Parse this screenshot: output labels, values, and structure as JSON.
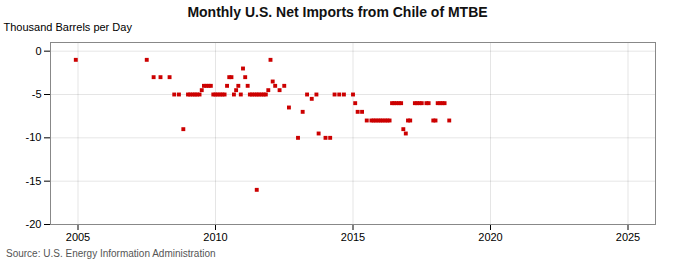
{
  "chart_data": {
    "type": "scatter",
    "title": "Monthly U.S. Net Imports from Chile of MTBE",
    "ylabel": "Thousand Barrels per Day",
    "source": "Source: U.S. Energy Information Administration",
    "x": [
      2004.92,
      2007.5,
      2007.75,
      2008.0,
      2008.33,
      2008.5,
      2008.67,
      2008.83,
      2009.0,
      2009.08,
      2009.17,
      2009.25,
      2009.33,
      2009.42,
      2009.5,
      2009.58,
      2009.67,
      2009.75,
      2009.83,
      2009.92,
      2010.0,
      2010.08,
      2010.17,
      2010.25,
      2010.33,
      2010.42,
      2010.5,
      2010.58,
      2010.67,
      2010.75,
      2010.83,
      2010.92,
      2011.0,
      2011.08,
      2011.17,
      2011.25,
      2011.33,
      2011.42,
      2011.5,
      2011.58,
      2011.67,
      2011.75,
      2011.83,
      2011.92,
      2012.0,
      2012.08,
      2012.17,
      2012.33,
      2012.5,
      2012.67,
      2013.0,
      2013.17,
      2013.33,
      2013.5,
      2013.67,
      2013.75,
      2014.0,
      2014.17,
      2014.33,
      2014.5,
      2014.67,
      2015.0,
      2015.08,
      2015.17,
      2015.33,
      2015.5,
      2015.67,
      2015.75,
      2015.83,
      2015.92,
      2016.0,
      2016.08,
      2016.17,
      2016.25,
      2016.33,
      2016.42,
      2016.5,
      2016.58,
      2016.67,
      2016.75,
      2016.83,
      2016.92,
      2017.0,
      2017.08,
      2017.25,
      2017.33,
      2017.42,
      2017.5,
      2017.67,
      2017.75,
      2017.92,
      2018.0,
      2018.08,
      2018.17,
      2018.25,
      2018.33,
      2018.5,
      2011.5
    ],
    "values": [
      -1.0,
      -1.0,
      -3.0,
      -3.0,
      -3.0,
      -5.0,
      -5.0,
      -9.0,
      -5.0,
      -5.0,
      -5.0,
      -5.0,
      -5.0,
      -5.0,
      -4.5,
      -4.0,
      -4.0,
      -4.0,
      -4.0,
      -5.0,
      -5.0,
      -5.0,
      -5.0,
      -5.0,
      -5.0,
      -4.0,
      -3.0,
      -3.0,
      -5.0,
      -4.5,
      -4.0,
      -5.0,
      -2.0,
      -3.0,
      -4.0,
      -5.0,
      -5.0,
      -5.0,
      -5.0,
      -5.0,
      -5.0,
      -5.0,
      -5.0,
      -4.5,
      -1.0,
      -3.5,
      -4.0,
      -4.5,
      -4.0,
      -6.5,
      -10.0,
      -7.0,
      -5.0,
      -5.5,
      -5.0,
      -9.5,
      -10.0,
      -10.0,
      -5.0,
      -5.0,
      -5.0,
      -5.0,
      -6.0,
      -7.0,
      -7.0,
      -8.0,
      -8.0,
      -8.0,
      -8.0,
      -8.0,
      -8.0,
      -8.0,
      -8.0,
      -8.0,
      -8.0,
      -6.0,
      -6.0,
      -6.0,
      -6.0,
      -6.0,
      -9.0,
      -9.5,
      -8.0,
      -8.0,
      -6.0,
      -6.0,
      -6.0,
      -6.0,
      -6.0,
      -6.0,
      -8.0,
      -8.0,
      -6.0,
      -6.0,
      -6.0,
      -6.0,
      -8.0,
      -16.0
    ],
    "xlim": [
      2004.0,
      2026.0
    ],
    "ylim": [
      -20,
      1
    ],
    "xticks": [
      2005,
      2010,
      2015,
      2020,
      2025
    ],
    "yticks": [
      0,
      -5,
      -10,
      -15,
      -20
    ],
    "color": "#cc0000",
    "marker": "square",
    "grid": true
  }
}
